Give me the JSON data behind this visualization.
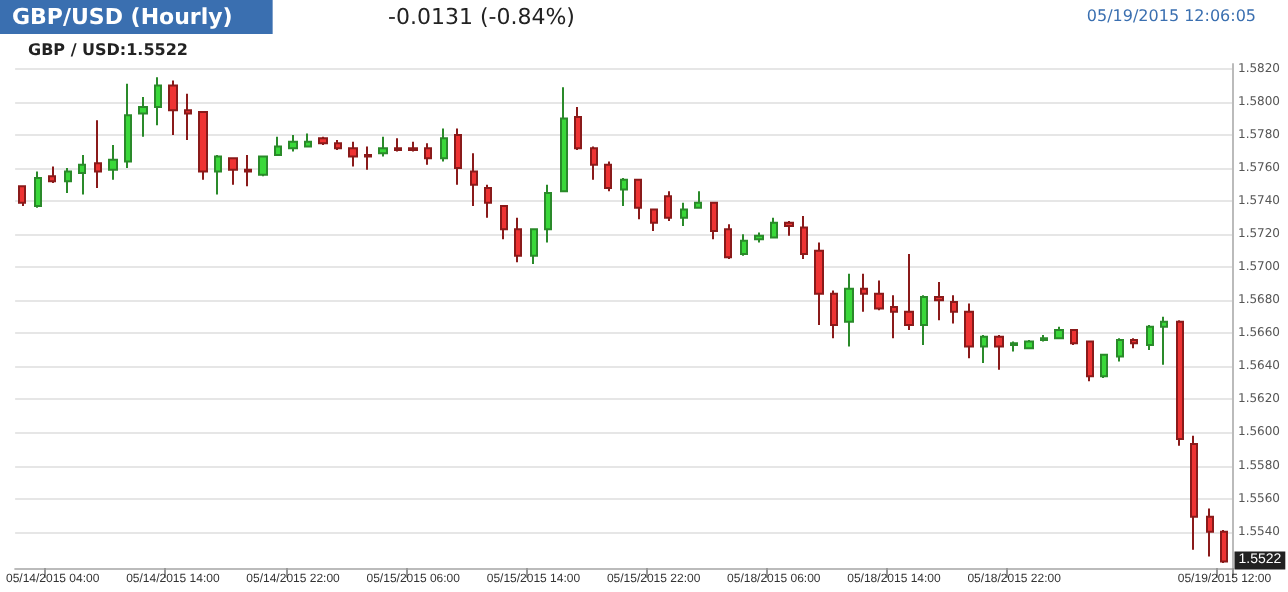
{
  "chart_data": {
    "type": "candlestick",
    "title": "GBP/USD (Hourly)",
    "subtitle": "-0.0131 (-0.84%)",
    "annotations": [
      "05/19/2015 12:06:05",
      "GBP / USD:1.5522",
      {
        "text": "1.5522",
        "x": "05/19/2015 12:00",
        "y": 1.5522
      }
    ],
    "categories": [
      null,
      null,
      "05/14/2015 04:00",
      null,
      null,
      null,
      null,
      null,
      null,
      null,
      "05/14/2015 14:00",
      null,
      null,
      null,
      null,
      null,
      null,
      null,
      "05/14/2015 22:00",
      null,
      null,
      null,
      null,
      null,
      null,
      null,
      "05/15/2015 06:00",
      null,
      null,
      null,
      null,
      null,
      null,
      null,
      "05/15/2015 14:00",
      null,
      null,
      null,
      null,
      null,
      null,
      null,
      "05/15/2015 22:00",
      null,
      null,
      null,
      null,
      null,
      null,
      null,
      "05/18/2015 06:00",
      null,
      null,
      null,
      null,
      null,
      null,
      null,
      "05/18/2015 14:00",
      null,
      null,
      null,
      null,
      null,
      null,
      null,
      "05/18/2015 22:00",
      null,
      null,
      null,
      null,
      null,
      null,
      null,
      null,
      null,
      null,
      null,
      null,
      null,
      "05/19/2015 12:00"
    ],
    "ohlc": [
      [
        1.5749,
        1.5749,
        1.5737,
        1.5739
      ],
      [
        1.5737,
        1.5758,
        1.5736,
        1.5754
      ],
      [
        1.5755,
        1.5761,
        1.5751,
        1.5752
      ],
      [
        1.5752,
        1.576,
        1.5745,
        1.5758
      ],
      [
        1.5757,
        1.5768,
        1.5744,
        1.5762
      ],
      [
        1.5763,
        1.5789,
        1.5748,
        1.5758
      ],
      [
        1.5759,
        1.5774,
        1.5753,
        1.5765
      ],
      [
        1.5764,
        1.5811,
        1.576,
        1.5792
      ],
      [
        1.5793,
        1.5803,
        1.5779,
        1.5797
      ],
      [
        1.5797,
        1.5815,
        1.5786,
        1.581
      ],
      [
        1.581,
        1.5813,
        1.578,
        1.5795
      ],
      [
        1.5795,
        1.5805,
        1.5777,
        1.5793
      ],
      [
        1.5794,
        1.5794,
        1.5753,
        1.5758
      ],
      [
        1.5758,
        1.5768,
        1.5744,
        1.5767
      ],
      [
        1.5766,
        1.5766,
        1.575,
        1.5759
      ],
      [
        1.5759,
        1.5768,
        1.5749,
        1.5758
      ],
      [
        1.5756,
        1.5767,
        1.5755,
        1.5767
      ],
      [
        1.5768,
        1.5779,
        1.5768,
        1.5773
      ],
      [
        1.5772,
        1.578,
        1.577,
        1.5776
      ],
      [
        1.5773,
        1.5781,
        1.5773,
        1.5776
      ],
      [
        1.5778,
        1.5779,
        1.5774,
        1.5775
      ],
      [
        1.5775,
        1.5777,
        1.5771,
        1.5772
      ],
      [
        1.5772,
        1.5776,
        1.5761,
        1.5767
      ],
      [
        1.5768,
        1.5773,
        1.5759,
        1.5767
      ],
      [
        1.5769,
        1.5779,
        1.5767,
        1.5772
      ],
      [
        1.5772,
        1.5778,
        1.577,
        1.5771
      ],
      [
        1.5772,
        1.5776,
        1.577,
        1.5771
      ],
      [
        1.5772,
        1.5775,
        1.5762,
        1.5766
      ],
      [
        1.5766,
        1.5784,
        1.5764,
        1.5778
      ],
      [
        1.578,
        1.5784,
        1.575,
        1.576
      ],
      [
        1.5758,
        1.5769,
        1.5737,
        1.575
      ],
      [
        1.5748,
        1.575,
        1.573,
        1.5739
      ],
      [
        1.5737,
        1.5737,
        1.5717,
        1.5723
      ],
      [
        1.5723,
        1.573,
        1.5703,
        1.5707
      ],
      [
        1.5707,
        1.5723,
        1.5702,
        1.5723
      ],
      [
        1.5723,
        1.575,
        1.5715,
        1.5745
      ],
      [
        1.5746,
        1.5809,
        1.5746,
        1.579
      ],
      [
        1.5791,
        1.5797,
        1.5771,
        1.5772
      ],
      [
        1.5772,
        1.5773,
        1.5753,
        1.5762
      ],
      [
        1.5762,
        1.5764,
        1.5746,
        1.5748
      ],
      [
        1.5747,
        1.5754,
        1.5737,
        1.5753
      ],
      [
        1.5753,
        1.5753,
        1.5729,
        1.5736
      ],
      [
        1.5735,
        1.5735,
        1.5722,
        1.5727
      ],
      [
        1.5743,
        1.5746,
        1.5728,
        1.573
      ],
      [
        1.573,
        1.5739,
        1.5725,
        1.5735
      ],
      [
        1.5736,
        1.5746,
        1.5736,
        1.5739
      ],
      [
        1.5739,
        1.5739,
        1.5717,
        1.5722
      ],
      [
        1.5723,
        1.5726,
        1.5705,
        1.5706
      ],
      [
        1.5708,
        1.572,
        1.5707,
        1.5716
      ],
      [
        1.5717,
        1.5721,
        1.5715,
        1.5719
      ],
      [
        1.5718,
        1.573,
        1.5718,
        1.5727
      ],
      [
        1.5727,
        1.5728,
        1.5719,
        1.5725
      ],
      [
        1.5724,
        1.5731,
        1.5705,
        1.5708
      ],
      [
        1.571,
        1.5715,
        1.5665,
        1.5684
      ],
      [
        1.5684,
        1.5686,
        1.5657,
        1.5665
      ],
      [
        1.5667,
        1.5696,
        1.5652,
        1.5687
      ],
      [
        1.5687,
        1.5696,
        1.5673,
        1.5684
      ],
      [
        1.5684,
        1.5692,
        1.5674,
        1.5675
      ],
      [
        1.5676,
        1.5683,
        1.5657,
        1.5673
      ],
      [
        1.5673,
        1.5708,
        1.5662,
        1.5665
      ],
      [
        1.5665,
        1.5683,
        1.5653,
        1.5682
      ],
      [
        1.5682,
        1.5691,
        1.5668,
        1.568
      ],
      [
        1.5679,
        1.5683,
        1.5666,
        1.5673
      ],
      [
        1.5673,
        1.5678,
        1.5645,
        1.5652
      ],
      [
        1.5652,
        1.5659,
        1.5642,
        1.5658
      ],
      [
        1.5658,
        1.5659,
        1.5638,
        1.5652
      ],
      [
        1.5653,
        1.5655,
        1.5649,
        1.5654
      ],
      [
        1.5651,
        1.5656,
        1.5651,
        1.5655
      ],
      [
        1.5656,
        1.5659,
        1.5655,
        1.5657
      ],
      [
        1.5657,
        1.5664,
        1.5657,
        1.5662
      ],
      [
        1.5662,
        1.5662,
        1.5653,
        1.5654
      ],
      [
        1.5655,
        1.5655,
        1.5631,
        1.5634
      ],
      [
        1.5634,
        1.5647,
        1.5633,
        1.5647
      ],
      [
        1.5646,
        1.5657,
        1.5643,
        1.5656
      ],
      [
        1.5656,
        1.5657,
        1.5651,
        1.5654
      ],
      [
        1.5653,
        1.5665,
        1.565,
        1.5664
      ],
      [
        1.5664,
        1.567,
        1.5641,
        1.5667
      ],
      [
        1.5667,
        1.5668,
        1.5592,
        1.5596
      ],
      [
        1.5593,
        1.5598,
        1.5529,
        1.5549
      ],
      [
        1.5549,
        1.5554,
        1.5525,
        1.554
      ],
      [
        1.554,
        1.5541,
        1.5521,
        1.5522
      ]
    ],
    "ylim": [
      1.5518,
      1.5823
    ],
    "yticks": [
      {
        "value": 1.554,
        "label": "1.5540"
      },
      {
        "value": 1.556,
        "label": "1.5560"
      },
      {
        "value": 1.558,
        "label": "1.5580"
      },
      {
        "value": 1.56,
        "label": "1.5600"
      },
      {
        "value": 1.562,
        "label": "1.5620"
      },
      {
        "value": 1.564,
        "label": "1.5640"
      },
      {
        "value": 1.566,
        "label": "1.5660"
      },
      {
        "value": 1.568,
        "label": "1.5680"
      },
      {
        "value": 1.57,
        "label": "1.5700"
      },
      {
        "value": 1.572,
        "label": "1.5720"
      },
      {
        "value": 1.574,
        "label": "1.5740"
      },
      {
        "value": 1.576,
        "label": "1.5760"
      },
      {
        "value": 1.578,
        "label": "1.5780"
      },
      {
        "value": 1.58,
        "label": "1.5800"
      },
      {
        "value": 1.582,
        "label": "1.5820"
      }
    ],
    "grid": "y"
  }
}
